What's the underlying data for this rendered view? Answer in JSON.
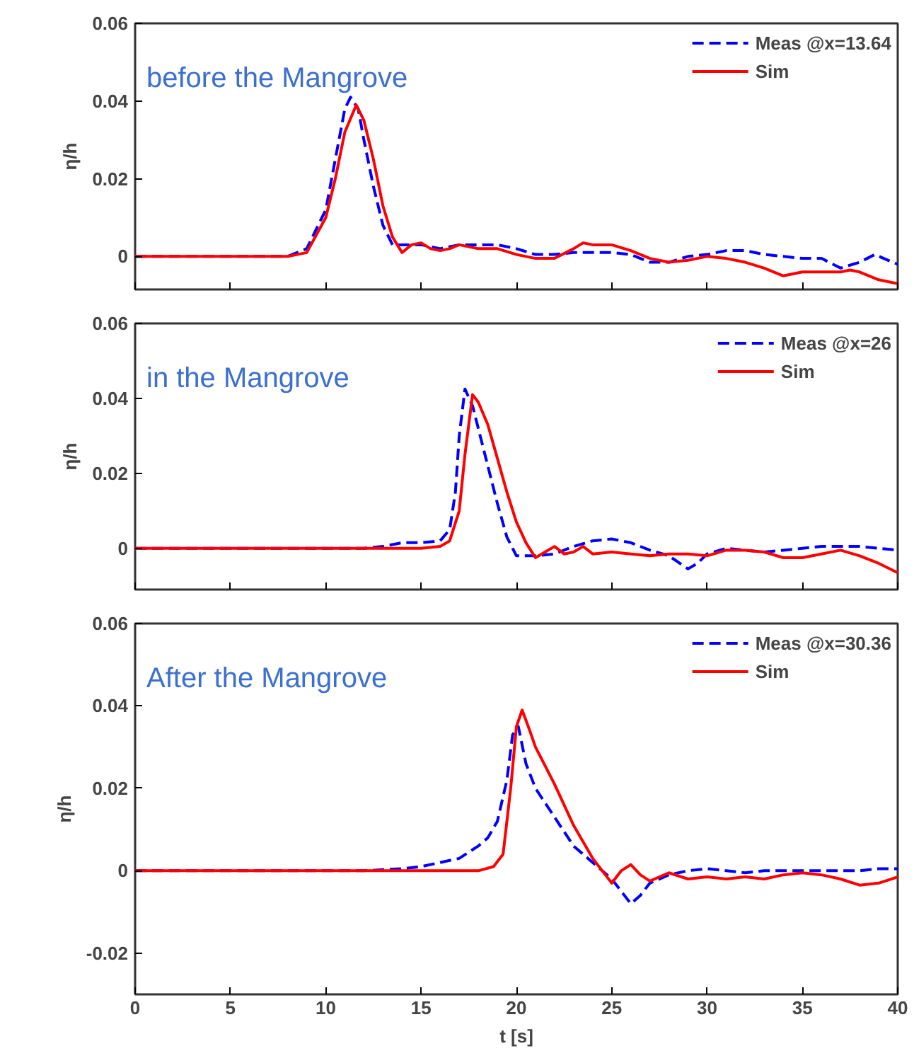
{
  "chart_data": [
    {
      "type": "line",
      "title": "before the Mangrove",
      "ylabel": "η/h",
      "xlim": [
        0,
        40
      ],
      "ylim": [
        -0.0085,
        0.06
      ],
      "xticks": [
        0,
        5,
        10,
        15,
        20,
        25,
        30,
        35,
        40
      ],
      "yticks": [
        0,
        0.02,
        0.04,
        0.06
      ],
      "tick_labels": "y",
      "grid": false,
      "legend": "top right",
      "series": [
        {
          "name": "Meas @x=13.64",
          "color": "#0000ff",
          "line_style": "dashed",
          "x": [
            0,
            8,
            9,
            10,
            10.5,
            11,
            11.3,
            11.7,
            12,
            12.5,
            13,
            13.5,
            14,
            15,
            16,
            17,
            18,
            19,
            20,
            21,
            22,
            23,
            24,
            25,
            26,
            27,
            28,
            29,
            30,
            31,
            32,
            33,
            34,
            35,
            36,
            37,
            38,
            38.8,
            39.5,
            40
          ],
          "values": [
            0,
            0,
            0.002,
            0.012,
            0.025,
            0.038,
            0.041,
            0.038,
            0.03,
            0.018,
            0.008,
            0.003,
            0.003,
            0.003,
            0.002,
            0.003,
            0.003,
            0.003,
            0.002,
            0.0005,
            0.0005,
            0.001,
            0.001,
            0.001,
            0.0005,
            -0.0015,
            -0.0015,
            0,
            0.0005,
            0.0015,
            0.0015,
            0.0005,
            0,
            -0.0005,
            -0.0005,
            -0.003,
            -0.0015,
            0.0005,
            -0.001,
            -0.002
          ]
        },
        {
          "name": "Sim",
          "color": "#ff0000",
          "line_style": "solid",
          "x": [
            0,
            8,
            9,
            10,
            10.5,
            11,
            11.6,
            12,
            12.5,
            13,
            13.5,
            14,
            14.5,
            15,
            15.5,
            16,
            16.5,
            17,
            18,
            19,
            20,
            21,
            22,
            23,
            23.5,
            24,
            25,
            26,
            27,
            28,
            29,
            30,
            31,
            32,
            33,
            34,
            35,
            36,
            37,
            37.5,
            38,
            39,
            40
          ],
          "values": [
            0,
            0,
            0.001,
            0.01,
            0.02,
            0.032,
            0.039,
            0.035,
            0.025,
            0.013,
            0.005,
            0.001,
            0.003,
            0.0035,
            0.002,
            0.0015,
            0.002,
            0.003,
            0.002,
            0.002,
            0.0005,
            -0.0005,
            -0.0005,
            0.002,
            0.0035,
            0.003,
            0.003,
            0.0015,
            -0.0005,
            -0.0015,
            -0.001,
            0,
            -0.0005,
            -0.0015,
            -0.003,
            -0.005,
            -0.004,
            -0.004,
            -0.004,
            -0.0035,
            -0.004,
            -0.006,
            -0.007
          ]
        }
      ]
    },
    {
      "type": "line",
      "title": "in the Mangrove",
      "ylabel": "η/h",
      "xlim": [
        0,
        40
      ],
      "ylim": [
        -0.011,
        0.06
      ],
      "xticks": [
        0,
        5,
        10,
        15,
        20,
        25,
        30,
        35,
        40
      ],
      "yticks": [
        0,
        0.02,
        0.04,
        0.06
      ],
      "tick_labels": "y",
      "grid": false,
      "legend": "top right",
      "series": [
        {
          "name": "Meas @x=26",
          "color": "#0000ff",
          "line_style": "dashed",
          "x": [
            0,
            12,
            13,
            14,
            15,
            16,
            16.5,
            16.8,
            17,
            17.3,
            17.7,
            18,
            18.5,
            19,
            19.5,
            20,
            21,
            22,
            23,
            24,
            25,
            26,
            27,
            28,
            29,
            29.5,
            30,
            31,
            32,
            33,
            34,
            35,
            36,
            37,
            38,
            39,
            40
          ],
          "values": [
            0,
            0,
            0.0005,
            0.0015,
            0.0015,
            0.002,
            0.005,
            0.015,
            0.03,
            0.0425,
            0.038,
            0.032,
            0.022,
            0.012,
            0.003,
            -0.002,
            -0.002,
            -0.0015,
            0.0005,
            0.002,
            0.0025,
            0.0015,
            -0.0005,
            -0.002,
            -0.0055,
            -0.004,
            -0.0015,
            0,
            -0.0005,
            -0.001,
            -0.0005,
            0,
            0.0005,
            0.0005,
            0.0005,
            0,
            -0.0005
          ]
        },
        {
          "name": "Sim",
          "color": "#ff0000",
          "line_style": "solid",
          "x": [
            0,
            15,
            16,
            16.5,
            17,
            17.3,
            17.7,
            18,
            18.5,
            19,
            19.5,
            20,
            20.5,
            21,
            21.5,
            22,
            22.5,
            23,
            23.5,
            24,
            25,
            26,
            27,
            28,
            29,
            30,
            31,
            32,
            33,
            34,
            35,
            36,
            37,
            38,
            39,
            40
          ],
          "values": [
            0,
            0,
            0.0005,
            0.002,
            0.01,
            0.025,
            0.041,
            0.039,
            0.033,
            0.024,
            0.015,
            0.007,
            0.0015,
            -0.0025,
            -0.001,
            0.0005,
            -0.0015,
            -0.001,
            0.0005,
            -0.0015,
            -0.001,
            -0.0015,
            -0.002,
            -0.0015,
            -0.0015,
            -0.002,
            -0.0005,
            -0.0005,
            -0.001,
            -0.0025,
            -0.0025,
            -0.0015,
            -0.0005,
            -0.002,
            -0.004,
            -0.0065
          ]
        }
      ]
    },
    {
      "type": "line",
      "title": "After the Mangrove",
      "ylabel": "η/h",
      "xlabel": "t [s]",
      "xlim": [
        0,
        40
      ],
      "ylim": [
        -0.03,
        0.06
      ],
      "xticks": [
        0,
        5,
        10,
        15,
        20,
        25,
        30,
        35,
        40
      ],
      "yticks": [
        -0.02,
        0,
        0.02,
        0.04,
        0.06
      ],
      "grid": false,
      "legend": "top right",
      "series": [
        {
          "name": "Meas @x=30.36",
          "color": "#0000ff",
          "line_style": "dashed",
          "x": [
            0,
            12,
            14,
            15,
            16,
            17,
            18,
            18.5,
            19,
            19.5,
            19.8,
            20.1,
            20.5,
            21,
            22,
            23,
            24,
            25,
            25.5,
            26,
            26.5,
            27,
            28,
            29,
            30,
            31,
            32,
            33,
            34,
            35,
            36,
            37,
            38,
            39,
            40
          ],
          "values": [
            0,
            0,
            0.0005,
            0.001,
            0.002,
            0.003,
            0.006,
            0.008,
            0.012,
            0.022,
            0.033,
            0.035,
            0.026,
            0.02,
            0.013,
            0.006,
            0.002,
            -0.002,
            -0.005,
            -0.008,
            -0.006,
            -0.003,
            -0.001,
            0,
            0.0005,
            0,
            -0.0005,
            0,
            0,
            0,
            0,
            0,
            0,
            0.0005,
            0.0005
          ]
        },
        {
          "name": "Sim",
          "color": "#ff0000",
          "line_style": "solid",
          "x": [
            0,
            18,
            18.8,
            19.3,
            19.7,
            20,
            20.3,
            20.7,
            21,
            22,
            23,
            24,
            25,
            25.5,
            26,
            26.5,
            27,
            28,
            29,
            30,
            31,
            32,
            33,
            34,
            35,
            36,
            37,
            38,
            39,
            40
          ],
          "values": [
            0,
            0,
            0.001,
            0.004,
            0.02,
            0.035,
            0.039,
            0.034,
            0.03,
            0.021,
            0.011,
            0.003,
            -0.003,
            0,
            0.0015,
            -0.001,
            -0.0025,
            -0.0005,
            -0.002,
            -0.0015,
            -0.002,
            -0.0015,
            -0.002,
            -0.001,
            -0.0005,
            -0.001,
            -0.002,
            -0.0035,
            -0.003,
            -0.0015
          ]
        }
      ]
    }
  ]
}
